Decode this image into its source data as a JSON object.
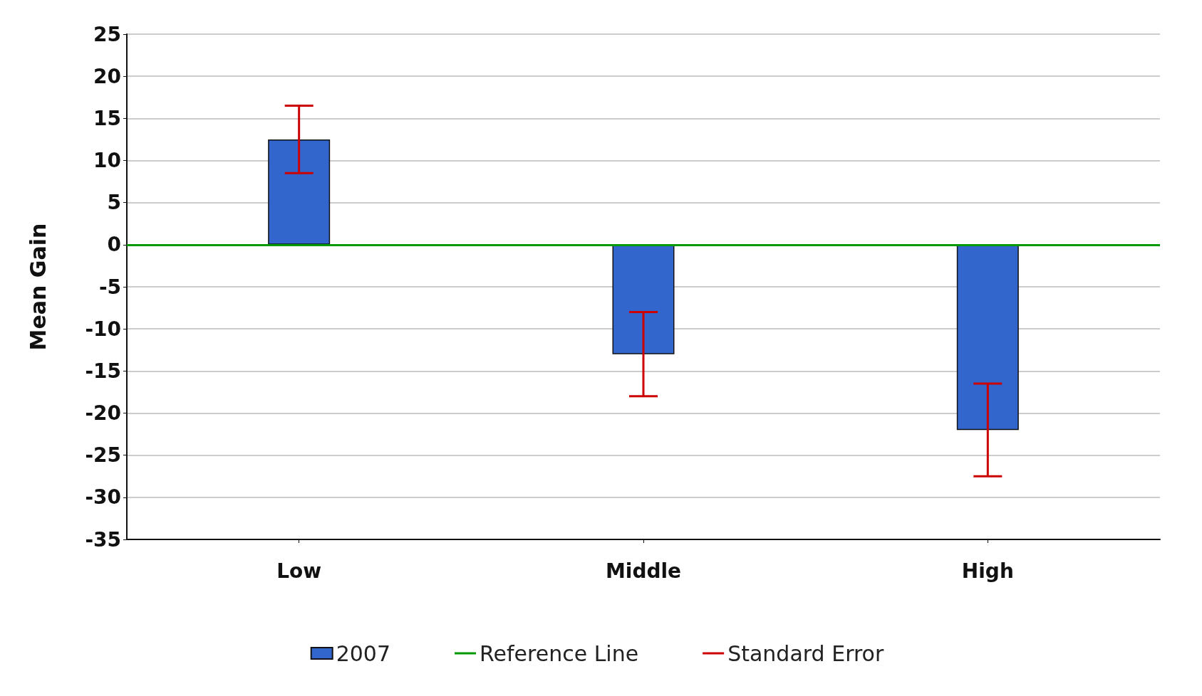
{
  "chart_data": {
    "type": "bar",
    "ylabel": "Mean Gain",
    "categories": [
      "Low",
      "Middle",
      "High"
    ],
    "series": [
      {
        "name": "2007",
        "color": "#3366cc",
        "values": [
          12.5,
          -13,
          -22
        ],
        "errors": [
          4,
          5,
          5.5
        ]
      }
    ],
    "annotations": [
      "Standard Error"
    ],
    "ref_lines": [
      {
        "axis": "y",
        "value": 0,
        "label": "Reference Line",
        "color": "#009900"
      }
    ],
    "ylim": [
      -35,
      25
    ],
    "yticks": [
      -35,
      -30,
      -25,
      -20,
      -15,
      -10,
      -5,
      0,
      5,
      10,
      15,
      20,
      25
    ],
    "grid": "y",
    "legend": "bottom"
  }
}
